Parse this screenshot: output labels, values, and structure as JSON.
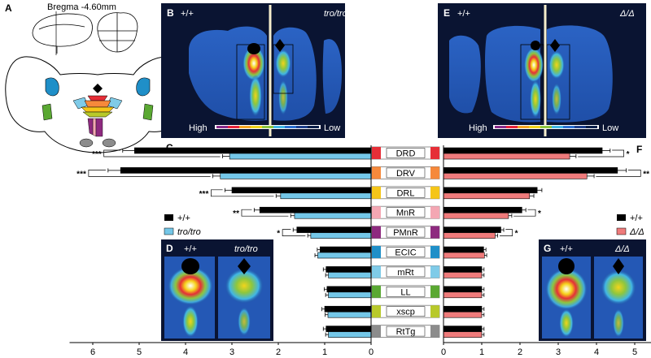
{
  "panel_a": {
    "letter": "A",
    "bregma_label": "Bregma -4.60mm"
  },
  "panel_b": {
    "letter": "B",
    "left_genotype": "+/+",
    "right_genotype": "tro/tro"
  },
  "panel_e": {
    "letter": "E",
    "left_genotype": "+/+",
    "right_genotype": "Δ/Δ"
  },
  "panel_d": {
    "letter": "D",
    "left_genotype": "+/+",
    "right_genotype": "tro/tro"
  },
  "panel_g": {
    "letter": "G",
    "left_genotype": "+/+",
    "right_genotype": "Δ/Δ"
  },
  "scale_bar": {
    "high": "High",
    "low": "Low",
    "colors": [
      "#8a2a8a",
      "#e8233a",
      "#f5a623",
      "#f2d41b",
      "#8dc63f",
      "#41b6e6",
      "#2a6fd1",
      "#1d3f8c",
      "#0b1f4a"
    ]
  },
  "legend_c": {
    "control": "+/+",
    "mutant": "tro/tro"
  },
  "legend_f": {
    "control": "+/+",
    "mutant": "Δ/Δ"
  },
  "colors": {
    "control_bar": "#000000",
    "tro_bar": "#74c7e8",
    "delta_bar": "#ef7b7b",
    "scan_bg": "#0a1432"
  },
  "regions": [
    {
      "label": "DRD",
      "color": "#e62e37"
    },
    {
      "label": "DRV",
      "color": "#f6893b"
    },
    {
      "label": "DRL",
      "color": "#f5c518"
    },
    {
      "label": "MnR",
      "color": "#f4a7b3"
    },
    {
      "label": "PMnR",
      "color": "#8e2a7f"
    },
    {
      "label": "ECIC",
      "color": "#1f8fc8"
    },
    {
      "label": "mRt",
      "color": "#7fcbe8"
    },
    {
      "label": "LL",
      "color": "#5aa832"
    },
    {
      "label": "xscp",
      "color": "#b8c92a"
    },
    {
      "label": "RtTg",
      "color": "#8c8c8c"
    }
  ],
  "chart_data": [
    {
      "type": "bar",
      "panel": "C",
      "orientation": "horizontal-reversed",
      "categories": [
        "DRD",
        "DRV",
        "DRL",
        "MnR",
        "PMnR",
        "ECIC",
        "mRt",
        "LL",
        "xscp",
        "RtTg"
      ],
      "series": [
        {
          "name": "+/+",
          "values": [
            5.1,
            5.4,
            3.0,
            2.4,
            1.6,
            1.1,
            0.97,
            0.95,
            1.0,
            0.97
          ]
        },
        {
          "name": "tro/tro",
          "values": [
            3.05,
            3.25,
            1.95,
            1.65,
            1.3,
            1.15,
            0.92,
            0.92,
            0.93,
            0.92
          ]
        }
      ],
      "significance": [
        "***",
        "***",
        "***",
        "**",
        "*",
        "",
        "",
        "",
        "",
        ""
      ],
      "xlim": [
        0,
        6.5
      ],
      "ticks": [
        "6",
        "5",
        "4",
        "3",
        "2",
        "1",
        "0"
      ]
    },
    {
      "type": "bar",
      "panel": "F",
      "orientation": "horizontal",
      "categories": [
        "DRD",
        "DRV",
        "DRL",
        "MnR",
        "PMnR",
        "ECIC",
        "mRt",
        "LL",
        "xscp",
        "RtTg"
      ],
      "series": [
        {
          "name": "+/+",
          "values": [
            4.15,
            4.55,
            2.45,
            2.05,
            1.5,
            1.05,
            1.0,
            1.0,
            1.0,
            1.0
          ]
        },
        {
          "name": "Δ/Δ",
          "values": [
            3.3,
            3.75,
            2.25,
            1.7,
            1.35,
            1.07,
            1.0,
            1.0,
            1.0,
            1.0
          ]
        }
      ],
      "significance": [
        "*",
        "**",
        "",
        "*",
        "*",
        "",
        "",
        "",
        "",
        ""
      ],
      "xlim": [
        0,
        5.5
      ],
      "ticks": [
        "0",
        "1",
        "2",
        "3",
        "4",
        "5"
      ]
    }
  ]
}
